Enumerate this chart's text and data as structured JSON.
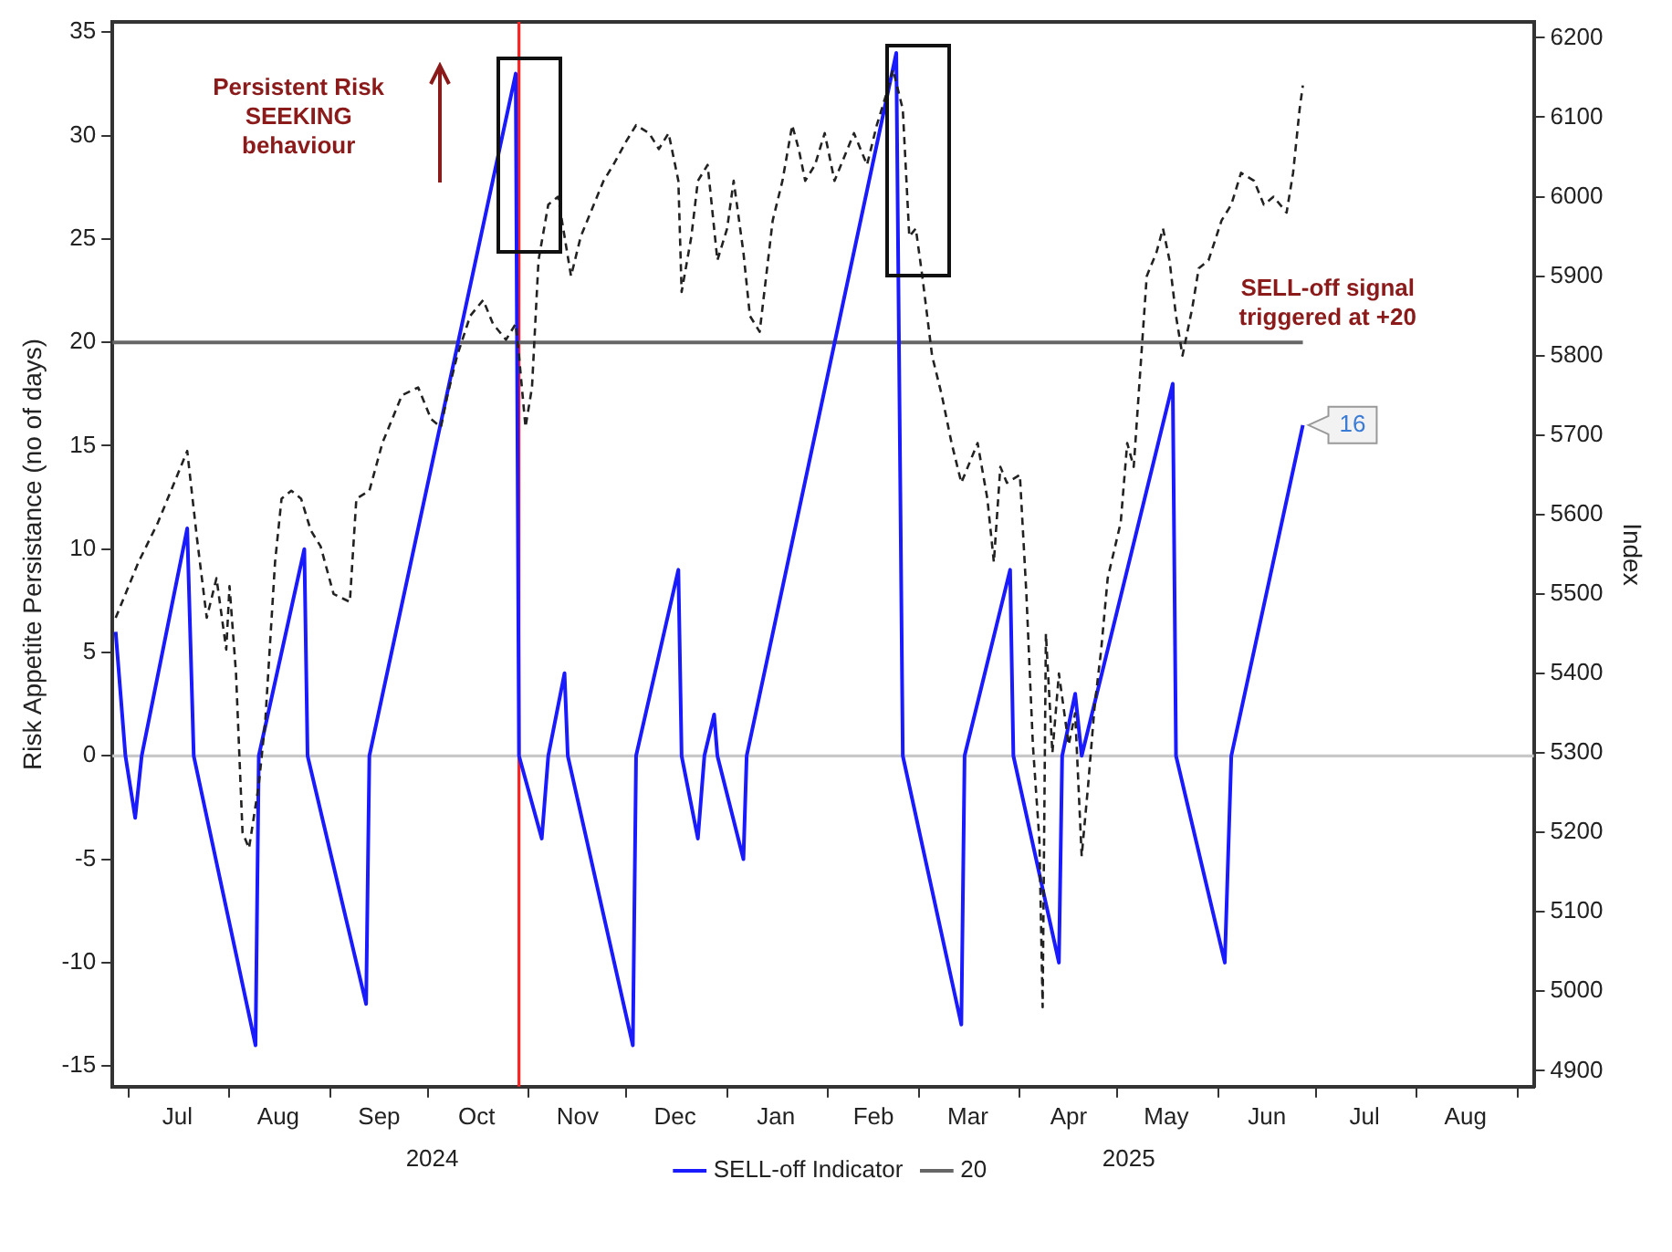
{
  "chart_data": {
    "type": "line",
    "ylabel": "Risk Appetite Persistance (no of days)",
    "y2label": "Index",
    "legend": "bottom",
    "grid": false,
    "marker": "none",
    "xlim": [
      "2024-06-26",
      "2025-09-06"
    ],
    "xticks": [
      {
        "value": "2024-07-01",
        "label": null
      },
      {
        "value": "2024-07-16",
        "label": "Jul"
      },
      {
        "value": "2024-08-01",
        "label": null
      },
      {
        "value": "2024-08-16",
        "label": "Aug"
      },
      {
        "value": "2024-09-01",
        "label": null
      },
      {
        "value": "2024-09-16",
        "label": "Sep"
      },
      {
        "value": "2024-10-01",
        "label": null
      },
      {
        "value": "2024-10-16",
        "label": "Oct"
      },
      {
        "value": "2024-11-01",
        "label": null
      },
      {
        "value": "2024-11-16",
        "label": "Nov"
      },
      {
        "value": "2024-12-01",
        "label": null
      },
      {
        "value": "2024-12-16",
        "label": "Dec"
      },
      {
        "value": "2025-01-01",
        "label": null
      },
      {
        "value": "2025-01-16",
        "label": "Jan"
      },
      {
        "value": "2025-02-01",
        "label": null
      },
      {
        "value": "2025-02-15",
        "label": "Feb"
      },
      {
        "value": "2025-03-01",
        "label": null
      },
      {
        "value": "2025-03-16",
        "label": "Mar"
      },
      {
        "value": "2025-04-01",
        "label": null
      },
      {
        "value": "2025-04-16",
        "label": "Apr"
      },
      {
        "value": "2025-05-01",
        "label": null
      },
      {
        "value": "2025-05-16",
        "label": "May"
      },
      {
        "value": "2025-06-01",
        "label": null
      },
      {
        "value": "2025-06-16",
        "label": "Jun"
      },
      {
        "value": "2025-07-01",
        "label": null
      },
      {
        "value": "2025-07-16",
        "label": "Jul"
      },
      {
        "value": "2025-08-01",
        "label": null
      },
      {
        "value": "2025-08-16",
        "label": "Aug"
      },
      {
        "value": "2025-09-01",
        "label": null
      }
    ],
    "ylim": [
      -16,
      35.5
    ],
    "yticks": [
      -15,
      -10,
      -5,
      0,
      5,
      10,
      15,
      20,
      25,
      30,
      35
    ],
    "y2lim": [
      4880,
      6220
    ],
    "y2ticks": [
      4900,
      5000,
      5100,
      5200,
      5300,
      5400,
      5500,
      5600,
      5700,
      5800,
      5900,
      6000,
      6100,
      6200
    ],
    "ref_lines": [
      {
        "axis": "y",
        "value": 0,
        "color": "#c8c8c8"
      },
      {
        "axis": "x",
        "value": "2024-10-29",
        "color": "#ff2020"
      }
    ],
    "annotations": [
      "Persistent Risk SEEKING behaviour",
      "SELL-off signal triggered at +20",
      "2024",
      "2025"
    ],
    "series": [
      {
        "axis": "y2",
        "color": "#222222",
        "line_style": "dashed",
        "x": [
          "2024-06-27",
          "2024-06-30",
          "2024-07-04",
          "2024-07-10",
          "2024-07-14",
          "2024-07-17",
          "2024-07-19",
          "2024-07-22",
          "2024-07-25",
          "2024-07-28",
          "2024-07-31",
          "2024-08-01",
          "2024-08-03",
          "2024-08-05",
          "2024-08-07",
          "2024-08-10",
          "2024-08-12",
          "2024-08-15",
          "2024-08-17",
          "2024-08-20",
          "2024-08-23",
          "2024-08-26",
          "2024-08-29",
          "2024-09-02",
          "2024-09-07",
          "2024-09-09",
          "2024-09-13",
          "2024-09-17",
          "2024-09-19",
          "2024-09-23",
          "2024-09-28",
          "2024-10-02",
          "2024-10-05",
          "2024-10-07",
          "2024-10-10",
          "2024-10-14",
          "2024-10-18",
          "2024-10-21",
          "2024-10-25",
          "2024-10-28",
          "2024-10-29",
          "2024-10-31",
          "2024-11-02",
          "2024-11-04",
          "2024-11-07",
          "2024-11-10",
          "2024-11-14",
          "2024-11-17",
          "2024-11-20",
          "2024-11-24",
          "2024-11-27",
          "2024-12-01",
          "2024-12-04",
          "2024-12-08",
          "2024-12-11",
          "2024-12-14",
          "2024-12-17",
          "2024-12-18",
          "2024-12-21",
          "2024-12-23",
          "2024-12-26",
          "2024-12-29",
          "2025-01-01",
          "2025-01-03",
          "2025-01-06",
          "2025-01-08",
          "2025-01-11",
          "2025-01-15",
          "2025-01-18",
          "2025-01-21",
          "2025-01-23",
          "2025-01-25",
          "2025-01-28",
          "2025-01-31",
          "2025-02-03",
          "2025-02-06",
          "2025-02-09",
          "2025-02-13",
          "2025-02-16",
          "2025-02-19",
          "2025-02-21",
          "2025-02-24",
          "2025-02-26",
          "2025-02-28",
          "2025-03-02",
          "2025-03-05",
          "2025-03-08",
          "2025-03-11",
          "2025-03-14",
          "2025-03-16",
          "2025-03-19",
          "2025-03-22",
          "2025-03-24",
          "2025-03-26",
          "2025-03-28",
          "2025-04-01",
          "2025-04-03",
          "2025-04-05",
          "2025-04-07",
          "2025-04-08",
          "2025-04-09",
          "2025-04-11",
          "2025-04-13",
          "2025-04-16",
          "2025-04-18",
          "2025-04-20",
          "2025-04-22",
          "2025-04-24",
          "2025-04-26",
          "2025-04-28",
          "2025-05-02",
          "2025-05-04",
          "2025-05-06",
          "2025-05-08",
          "2025-05-10",
          "2025-05-13",
          "2025-05-15",
          "2025-05-17",
          "2025-05-19",
          "2025-05-21",
          "2025-05-24",
          "2025-05-26",
          "2025-05-29",
          "2025-06-02",
          "2025-06-05",
          "2025-06-08",
          "2025-06-12",
          "2025-06-15",
          "2025-06-18",
          "2025-06-22",
          "2025-06-24",
          "2025-06-26",
          "2025-06-27"
        ],
        "values": [
          5470,
          5500,
          5540,
          5590,
          5630,
          5660,
          5680,
          5570,
          5470,
          5520,
          5430,
          5510,
          5400,
          5200,
          5180,
          5260,
          5340,
          5540,
          5620,
          5630,
          5620,
          5580,
          5560,
          5500,
          5490,
          5620,
          5630,
          5690,
          5710,
          5750,
          5760,
          5720,
          5710,
          5750,
          5800,
          5850,
          5870,
          5840,
          5820,
          5840,
          5800,
          5710,
          5760,
          5920,
          5990,
          6000,
          5900,
          5950,
          5980,
          6020,
          6040,
          6070,
          6090,
          6080,
          6060,
          6080,
          6020,
          5880,
          5950,
          6020,
          6040,
          5920,
          5960,
          6020,
          5930,
          5850,
          5830,
          5970,
          6020,
          6090,
          6060,
          6020,
          6040,
          6080,
          6020,
          6050,
          6080,
          6040,
          6090,
          6130,
          6160,
          6110,
          5950,
          5960,
          5900,
          5800,
          5750,
          5690,
          5640,
          5660,
          5690,
          5620,
          5540,
          5660,
          5640,
          5650,
          5500,
          5310,
          5190,
          4980,
          5450,
          5300,
          5400,
          5310,
          5350,
          5170,
          5260,
          5360,
          5430,
          5520,
          5590,
          5690,
          5660,
          5780,
          5900,
          5930,
          5960,
          5920,
          5850,
          5800,
          5860,
          5910,
          5920,
          5970,
          5990,
          6030,
          6020,
          5990,
          6000,
          5980,
          6030,
          6110,
          6140
        ]
      },
      {
        "name": "SELL-off Indicator",
        "color": "#1a1aff",
        "x": [
          "2024-06-27",
          "2024-06-30",
          "2024-07-03",
          "2024-07-05",
          "2024-07-19",
          "2024-07-21",
          "2024-08-09",
          "2024-08-10",
          "2024-08-24",
          "2024-08-25",
          "2024-09-12",
          "2024-09-13",
          "2024-10-28",
          "2024-10-29",
          "2024-11-05",
          "2024-11-07",
          "2024-11-12",
          "2024-11-13",
          "2024-12-03",
          "2024-12-04",
          "2024-12-17",
          "2024-12-18",
          "2024-12-23",
          "2024-12-25",
          "2024-12-28",
          "2024-12-29",
          "2025-01-06",
          "2025-01-07",
          "2025-02-22",
          "2025-02-24",
          "2025-03-14",
          "2025-03-15",
          "2025-03-29",
          "2025-03-30",
          "2025-04-13",
          "2025-04-14",
          "2025-04-18",
          "2025-04-20",
          "2025-05-18",
          "2025-05-19",
          "2025-06-03",
          "2025-06-05",
          "2025-06-27"
        ],
        "values": [
          6,
          0,
          -3,
          0,
          11,
          0,
          -14,
          0,
          10,
          0,
          -12,
          0,
          33,
          0,
          -4,
          0,
          4,
          0,
          -14,
          0,
          9,
          0,
          -4,
          0,
          2,
          0,
          -5,
          0,
          34,
          0,
          -13,
          0,
          9,
          0,
          -10,
          0,
          3,
          0,
          18,
          0,
          -10,
          0,
          16
        ],
        "value_labels": [
          null,
          null,
          null,
          null,
          null,
          null,
          null,
          null,
          null,
          null,
          null,
          null,
          null,
          null,
          null,
          null,
          null,
          null,
          null,
          null,
          null,
          null,
          null,
          null,
          null,
          null,
          null,
          null,
          null,
          null,
          null,
          null,
          null,
          null,
          null,
          null,
          null,
          null,
          null,
          null,
          null,
          null,
          "16"
        ]
      },
      {
        "name": "20",
        "color": "#666666",
        "x": [
          "2024-06-26",
          "2025-06-27"
        ],
        "values": [
          20,
          20
        ]
      }
    ]
  }
}
